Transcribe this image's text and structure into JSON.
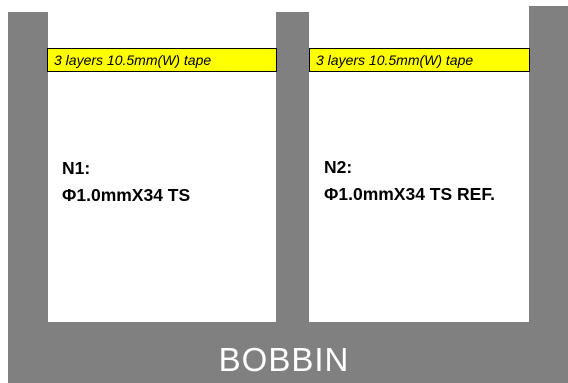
{
  "colors": {
    "bobbin": "#808080",
    "tape": "#ffff00",
    "tape_border": "#000000",
    "text": "#000000",
    "bobbin_text": "#ffffff",
    "background": "#ffffff"
  },
  "bobbin": {
    "label": "BOBBIN"
  },
  "sections": [
    {
      "tape_label": "3 layers 10.5mm(W) tape",
      "winding_name": "N1:",
      "winding_spec": "Φ1.0mmX34 TS"
    },
    {
      "tape_label": "3 layers 10.5mm(W) tape",
      "winding_name": "N2:",
      "winding_spec": "Φ1.0mmX34 TS REF."
    }
  ]
}
